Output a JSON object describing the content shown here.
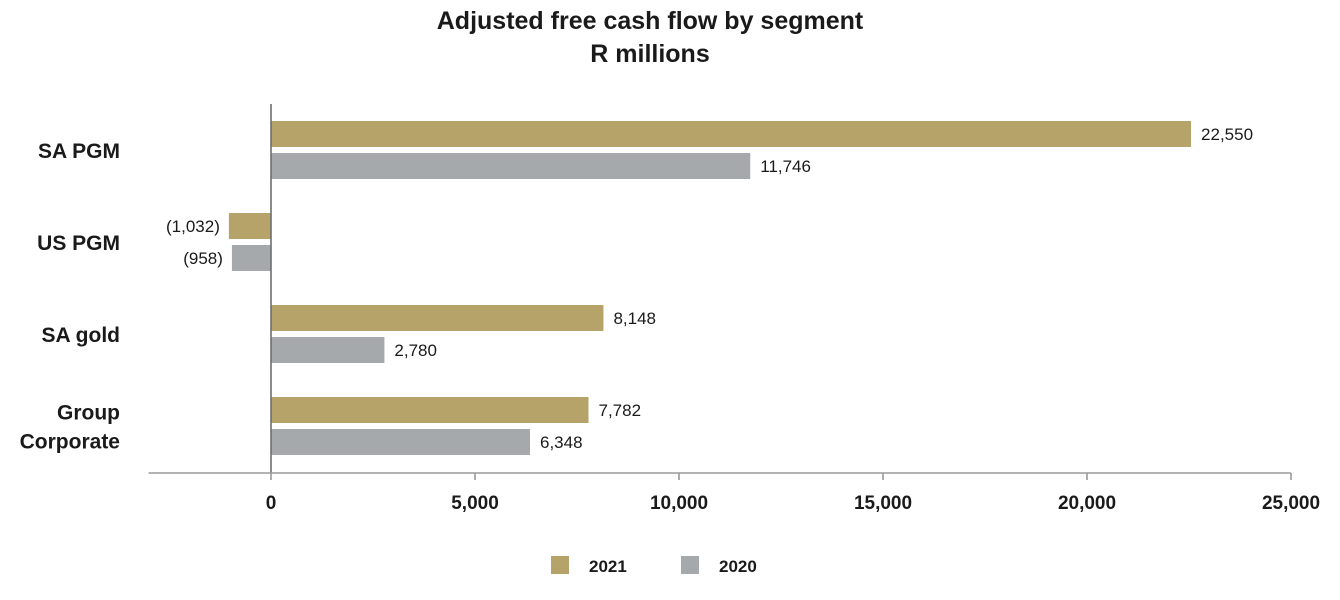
{
  "chart_data": {
    "type": "bar",
    "orientation": "horizontal",
    "title": "Adjusted free cash flow by segment",
    "subtitle": "R millions",
    "categories": [
      [
        "SA PGM"
      ],
      [
        "US PGM"
      ],
      [
        "SA gold"
      ],
      [
        "Group",
        "Corporate"
      ]
    ],
    "series": [
      {
        "name": "2021",
        "color": "#b5a36a",
        "values": [
          22550,
          -1032,
          8148,
          7782
        ],
        "labels": [
          "22,550",
          "(1,032)",
          "8,148",
          "7,782"
        ]
      },
      {
        "name": "2020",
        "color": "#a5a9ac",
        "values": [
          11746,
          -958,
          2780,
          6348
        ],
        "labels": [
          "11,746",
          "(958)",
          "2,780",
          "6,348"
        ]
      }
    ],
    "xlim": [
      -3000,
      25000
    ],
    "xticks": [
      0,
      5000,
      10000,
      15000,
      20000,
      25000
    ],
    "xtick_labels": [
      "0",
      "5,000",
      "10,000",
      "15,000",
      "20,000",
      "25,000"
    ],
    "legend_position": "bottom",
    "grid": false
  }
}
